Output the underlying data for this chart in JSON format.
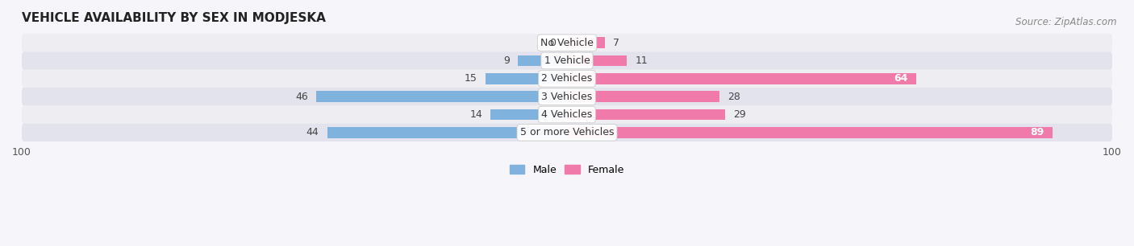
{
  "title": "VEHICLE AVAILABILITY BY SEX IN MODJESKA",
  "source": "Source: ZipAtlas.com",
  "categories": [
    "No Vehicle",
    "1 Vehicle",
    "2 Vehicles",
    "3 Vehicles",
    "4 Vehicles",
    "5 or more Vehicles"
  ],
  "male_values": [
    0,
    9,
    15,
    46,
    14,
    44
  ],
  "female_values": [
    7,
    11,
    64,
    28,
    29,
    89
  ],
  "male_color": "#7fb3de",
  "female_color": "#f07aaa",
  "row_bg_color_light": "#ededf2",
  "row_bg_color_dark": "#e2e3ec",
  "fig_bg_color": "#f5f5fa",
  "xlim": [
    -100,
    100
  ],
  "bar_height": 0.62,
  "title_fontsize": 11,
  "label_fontsize": 9,
  "tick_fontsize": 9,
  "source_fontsize": 8.5,
  "value_label_threshold": 55
}
